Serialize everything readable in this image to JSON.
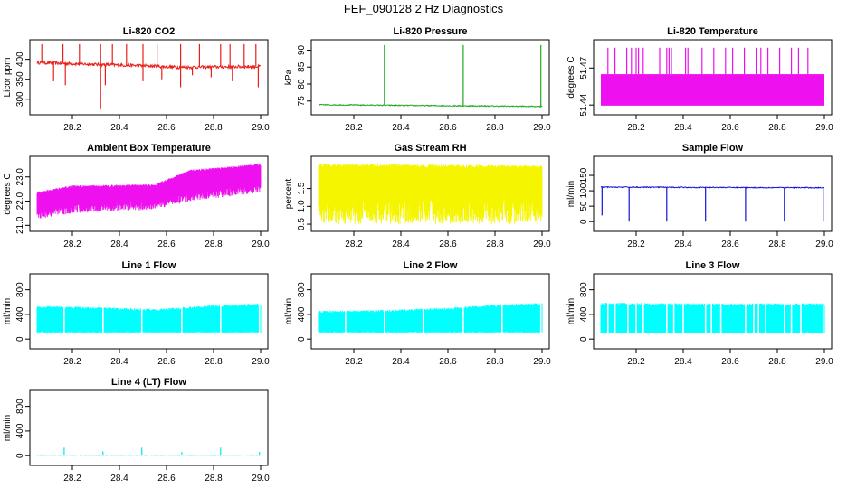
{
  "figure": {
    "title": "FEF_090128  2 Hz Diagnostics"
  },
  "chart_data": [
    {
      "id": "co2",
      "type": "line",
      "title": "Li-820 CO2",
      "ylabel": "Licor ppm",
      "color": "#e8201c",
      "xlim": [
        28.05,
        29.0
      ],
      "xticks": [
        "28.2",
        "28.4",
        "28.6",
        "28.8",
        "29.0"
      ],
      "xtick_values": [
        28.2,
        28.4,
        28.6,
        28.8,
        29.0
      ],
      "ylim": [
        270,
        440
      ],
      "yticks": [
        "300",
        "350",
        "400"
      ],
      "ytick_values": [
        300,
        350,
        400
      ],
      "base": [
        [
          28.05,
          392
        ],
        [
          28.3,
          387
        ],
        [
          28.5,
          384
        ],
        [
          28.65,
          380
        ],
        [
          29.0,
          382
        ]
      ],
      "noise": 4,
      "spikes_up": [
        28.07,
        28.16,
        28.23,
        28.32,
        28.37,
        28.43,
        28.5,
        28.56,
        28.66,
        28.74,
        28.83,
        28.87,
        28.93,
        28.98
      ],
      "spikes_down": [
        [
          28.12,
          345
        ],
        [
          28.17,
          335
        ],
        [
          28.32,
          275
        ],
        [
          28.34,
          335
        ],
        [
          28.5,
          345
        ],
        [
          28.58,
          350
        ],
        [
          28.66,
          330
        ],
        [
          28.71,
          360
        ],
        [
          28.79,
          355
        ],
        [
          28.88,
          345
        ],
        [
          28.99,
          330
        ]
      ],
      "spike_top": 438
    },
    {
      "id": "pressure",
      "type": "line",
      "title": "Li-820 Pressure",
      "ylabel": "kPa",
      "color": "#1fa81f",
      "xlim": [
        28.05,
        29.0
      ],
      "xticks": [
        "28.2",
        "28.4",
        "28.6",
        "28.8",
        "29.0"
      ],
      "xtick_values": [
        28.2,
        28.4,
        28.6,
        28.8,
        29.0
      ],
      "ylim": [
        72,
        92
      ],
      "yticks": [
        "75",
        "80",
        "85",
        "90"
      ],
      "ytick_values": [
        75,
        80,
        85,
        90
      ],
      "base": [
        [
          28.05,
          73.9
        ],
        [
          29.0,
          73.4
        ]
      ],
      "noise": 0.15,
      "spikes_up": [
        28.33,
        28.665,
        28.995
      ],
      "spikes_down": [],
      "spike_top": 91.5
    },
    {
      "id": "licor_temp",
      "type": "band",
      "title": "Li-820 Temperature",
      "ylabel": "degrees C",
      "color": "#ee10ee",
      "xlim": [
        28.05,
        29.0
      ],
      "xticks": [
        "28.2",
        "28.4",
        "28.6",
        "28.8",
        "29.0"
      ],
      "xtick_values": [
        28.2,
        28.4,
        28.6,
        28.8,
        29.0
      ],
      "ylim": [
        51.435,
        51.49
      ],
      "yticks": [
        "51.44",
        "51.47"
      ],
      "ytick_values": [
        51.44,
        51.47
      ],
      "band": [
        51.4395,
        51.465
      ],
      "spike_top": 51.4865,
      "spikes_up": [
        28.08,
        28.11,
        28.16,
        28.18,
        28.2,
        28.21,
        28.23,
        28.3,
        28.33,
        28.34,
        28.35,
        28.41,
        28.42,
        28.48,
        28.53,
        28.58,
        28.61,
        28.66,
        28.71,
        28.73,
        28.76,
        28.81,
        28.86,
        28.89,
        28.93
      ]
    },
    {
      "id": "box_temp",
      "type": "noise",
      "title": "Ambient Box Temperature",
      "ylabel": "degrees C",
      "color": "#ee10ee",
      "xlim": [
        28.05,
        29.0
      ],
      "xticks": [
        "28.2",
        "28.4",
        "28.6",
        "28.8",
        "29.0"
      ],
      "xtick_values": [
        28.2,
        28.4,
        28.6,
        28.8,
        29.0
      ],
      "ylim": [
        20.9,
        23.7
      ],
      "yticks": [
        "21.0",
        "22.0",
        "23.0"
      ],
      "ytick_values": [
        21.0,
        22.0,
        23.0
      ],
      "upper": [
        [
          28.05,
          22.3
        ],
        [
          28.2,
          22.55
        ],
        [
          28.55,
          22.6
        ],
        [
          28.7,
          23.2
        ],
        [
          29.0,
          23.45
        ]
      ],
      "lower": [
        [
          28.05,
          21.6
        ],
        [
          28.2,
          21.85
        ],
        [
          28.55,
          22.0
        ],
        [
          28.7,
          22.35
        ],
        [
          29.0,
          22.7
        ]
      ],
      "spread_down": 0.35,
      "spread_up": 0.1
    },
    {
      "id": "rh",
      "type": "noise",
      "title": "Gas Stream RH",
      "ylabel": "percent",
      "color": "#f5f500",
      "xlim": [
        28.05,
        29.0
      ],
      "xticks": [
        "28.2",
        "28.4",
        "28.6",
        "28.8",
        "29.0"
      ],
      "xtick_values": [
        28.2,
        28.4,
        28.6,
        28.8,
        29.0
      ],
      "ylim": [
        0.4,
        2.3
      ],
      "yticks": [
        "0.5",
        "1.0",
        "1.5"
      ],
      "ytick_values": [
        0.5,
        1.0,
        1.5
      ],
      "upper": [
        [
          28.05,
          2.1
        ],
        [
          29.0,
          2.05
        ]
      ],
      "lower": [
        [
          28.05,
          1.2
        ],
        [
          29.0,
          1.2
        ]
      ],
      "spread_down": 0.7,
      "spread_up": 0.1
    },
    {
      "id": "sample_flow",
      "type": "line",
      "title": "Sample Flow",
      "ylabel": "ml/min",
      "color": "#1010d8",
      "xlim": [
        28.05,
        29.0
      ],
      "xticks": [
        "28.2",
        "28.4",
        "28.6",
        "28.8",
        "29.0"
      ],
      "xtick_values": [
        28.2,
        28.4,
        28.6,
        28.8,
        29.0
      ],
      "ylim": [
        -20,
        200
      ],
      "yticks": [
        "0",
        "50",
        "100",
        "150"
      ],
      "ytick_values": [
        0,
        50,
        100,
        150
      ],
      "base": [
        [
          28.05,
          112
        ],
        [
          29.0,
          110
        ]
      ],
      "noise": 1.5,
      "spikes_up": [],
      "spikes_down": [
        [
          28.055,
          20
        ],
        [
          28.17,
          0
        ],
        [
          28.33,
          0
        ],
        [
          28.495,
          0
        ],
        [
          28.665,
          0
        ],
        [
          28.83,
          0
        ],
        [
          28.995,
          0
        ]
      ],
      "spike_top": 112
    },
    {
      "id": "line1",
      "type": "band",
      "title": "Line 1 Flow",
      "ylabel": "ml/min",
      "color": "#00ffff",
      "xlim": [
        28.05,
        29.0
      ],
      "xticks": [
        "28.2",
        "28.4",
        "28.6",
        "28.8",
        "29.0"
      ],
      "xtick_values": [
        28.2,
        28.4,
        28.6,
        28.8,
        29.0
      ],
      "ylim": [
        -100,
        1000
      ],
      "yticks": [
        "0",
        "400",
        "800"
      ],
      "ytick_values": [
        0,
        400,
        800
      ],
      "band_lower": [
        [
          28.05,
          110
        ],
        [
          29.0,
          110
        ]
      ],
      "band_upper": [
        [
          28.05,
          520
        ],
        [
          28.3,
          500
        ],
        [
          28.55,
          470
        ],
        [
          28.8,
          530
        ],
        [
          29.0,
          560
        ]
      ],
      "gaps": [
        28.165,
        28.33,
        28.495,
        28.665,
        28.83,
        28.995
      ]
    },
    {
      "id": "line2",
      "type": "band",
      "title": "Line 2 Flow",
      "ylabel": "ml/min",
      "color": "#00ffff",
      "xlim": [
        28.05,
        29.0
      ],
      "xticks": [
        "28.2",
        "28.4",
        "28.6",
        "28.8",
        "29.0"
      ],
      "xtick_values": [
        28.2,
        28.4,
        28.6,
        28.8,
        29.0
      ],
      "ylim": [
        -100,
        1000
      ],
      "yticks": [
        "0",
        "400",
        "800"
      ],
      "ytick_values": [
        0,
        400,
        800
      ],
      "band_lower": [
        [
          28.05,
          110
        ],
        [
          29.0,
          110
        ]
      ],
      "band_upper": [
        [
          28.05,
          440
        ],
        [
          28.35,
          455
        ],
        [
          28.6,
          490
        ],
        [
          28.8,
          540
        ],
        [
          29.0,
          570
        ]
      ],
      "gaps": [
        28.165,
        28.33,
        28.495,
        28.665,
        28.83,
        28.995
      ]
    },
    {
      "id": "line3",
      "type": "band",
      "title": "Line 3 Flow",
      "ylabel": "ml/min",
      "color": "#00ffff",
      "xlim": [
        28.05,
        29.0
      ],
      "xticks": [
        "28.2",
        "28.4",
        "28.6",
        "28.8",
        "29.0"
      ],
      "xtick_values": [
        28.2,
        28.4,
        28.6,
        28.8,
        29.0
      ],
      "ylim": [
        -100,
        1000
      ],
      "yticks": [
        "0",
        "400",
        "800"
      ],
      "ytick_values": [
        0,
        400,
        800
      ],
      "band_lower": [
        [
          28.05,
          105
        ],
        [
          29.0,
          105
        ]
      ],
      "band_upper": [
        [
          28.05,
          570
        ],
        [
          28.5,
          560
        ],
        [
          29.0,
          560
        ]
      ],
      "gaps": [
        28.08,
        28.11,
        28.165,
        28.2,
        28.23,
        28.33,
        28.36,
        28.4,
        28.495,
        28.52,
        28.56,
        28.665,
        28.7,
        28.72,
        28.75,
        28.83,
        28.86,
        28.9,
        28.995
      ]
    },
    {
      "id": "line4",
      "type": "line",
      "title": "Line 4 (LT) Flow",
      "ylabel": "ml/min",
      "color": "#00e8e8",
      "xlim": [
        28.05,
        29.0
      ],
      "xticks": [
        "28.2",
        "28.4",
        "28.6",
        "28.8",
        "29.0"
      ],
      "xtick_values": [
        28.2,
        28.4,
        28.6,
        28.8,
        29.0
      ],
      "ylim": [
        -100,
        1000
      ],
      "yticks": [
        "0",
        "400",
        "800"
      ],
      "ytick_values": [
        0,
        400,
        800
      ],
      "base": [
        [
          28.05,
          8
        ],
        [
          29.0,
          8
        ]
      ],
      "noise": 3,
      "spikes_up": [
        [
          28.165,
          130
        ],
        [
          28.33,
          70
        ],
        [
          28.495,
          130
        ],
        [
          28.665,
          60
        ],
        [
          28.83,
          130
        ],
        [
          28.995,
          60
        ]
      ],
      "spikes_down": []
    }
  ]
}
